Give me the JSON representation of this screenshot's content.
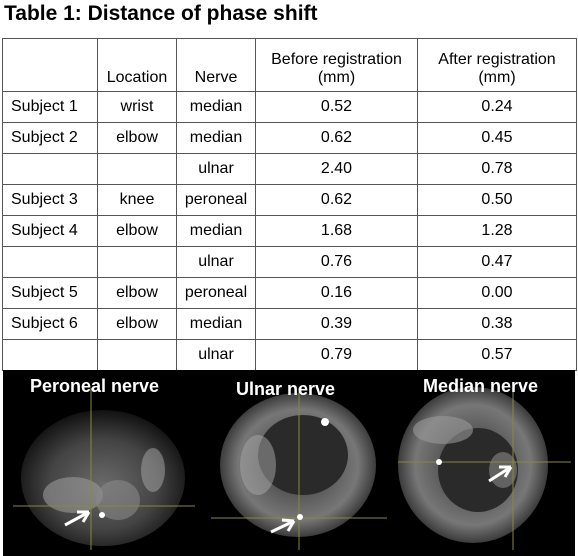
{
  "title": "Table 1: Distance of phase shift",
  "table": {
    "header": {
      "location": "Location",
      "nerve": "Nerve",
      "before": [
        "Before registration",
        "(mm)"
      ],
      "after": [
        "After registration",
        "(mm)"
      ]
    },
    "rows": [
      {
        "subject": "Subject 1",
        "location": "wrist",
        "nerve": "median",
        "before": "0.52",
        "after": "0.24"
      },
      {
        "subject": "Subject 2",
        "location": "elbow",
        "nerve": "median",
        "before": "0.62",
        "after": "0.45"
      },
      {
        "nerve": "ulnar",
        "before": "2.40",
        "after": "0.78"
      },
      {
        "subject": "Subject 3",
        "location": "knee",
        "nerve": "peroneal",
        "before": "0.62",
        "after": "0.50"
      },
      {
        "subject": "Subject 4",
        "location": "elbow",
        "nerve": "median",
        "before": "1.68",
        "after": "1.28"
      },
      {
        "nerve": "ulnar",
        "before": "0.76",
        "after": "0.47"
      },
      {
        "subject": "Subject 5",
        "location": "elbow",
        "nerve": "peroneal",
        "before": "0.16",
        "after": "0.00"
      },
      {
        "subject": "Subject 6",
        "location": "elbow",
        "nerve": "median",
        "before": "0.39",
        "after": "0.38"
      },
      {
        "nerve": "ulnar",
        "before": "0.79",
        "after": "0.57"
      }
    ]
  },
  "images": [
    {
      "label": "Peroneal nerve"
    },
    {
      "label": "Ulnar nerve"
    },
    {
      "label": "Median nerve"
    }
  ]
}
